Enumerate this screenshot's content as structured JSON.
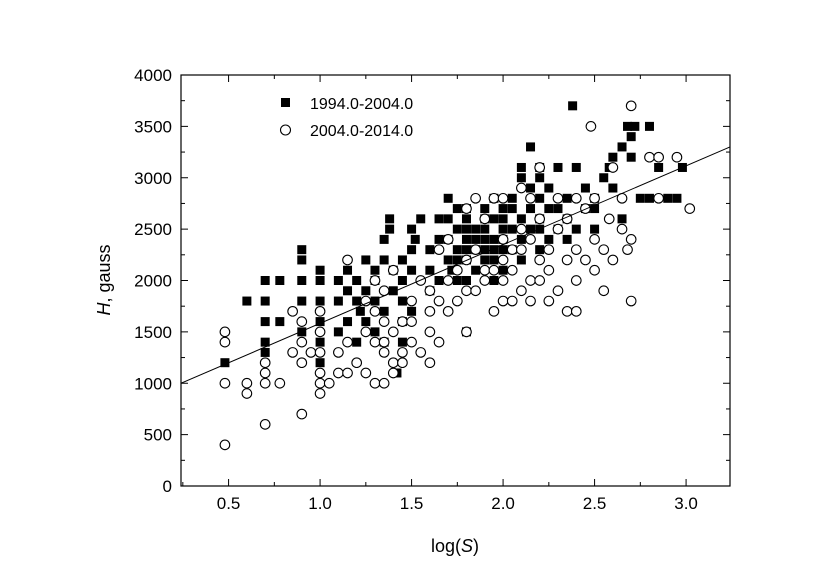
{
  "chart_data": {
    "type": "scatter",
    "xlabel": {
      "prefix": "log(",
      "var": "S",
      "suffix": ")"
    },
    "ylabel": {
      "var": "H",
      "suffix": ", gauss"
    },
    "xlim": [
      0.24,
      3.24
    ],
    "ylim": [
      0,
      4000
    ],
    "x_ticks": [
      "0.5",
      "1.0",
      "1.5",
      "2.0",
      "2.5",
      "3.0"
    ],
    "x_tick_values": [
      0.5,
      1.0,
      1.5,
      2.0,
      2.5,
      3.0
    ],
    "y_ticks": [
      "0",
      "500",
      "1000",
      "1500",
      "2000",
      "2500",
      "3000",
      "3500",
      "4000"
    ],
    "y_tick_values": [
      0,
      500,
      1000,
      1500,
      2000,
      2500,
      3000,
      3500,
      4000
    ],
    "grid": false,
    "legend_position": "top-left",
    "series": [
      {
        "name": "1994.0-2004.0",
        "marker": "filled-square",
        "color": "#000000",
        "points": [
          [
            0.48,
            1200
          ],
          [
            0.6,
            1800
          ],
          [
            0.7,
            1300
          ],
          [
            0.7,
            1400
          ],
          [
            0.7,
            1600
          ],
          [
            0.7,
            1800
          ],
          [
            0.7,
            2000
          ],
          [
            0.78,
            1600
          ],
          [
            0.78,
            2000
          ],
          [
            0.9,
            1500
          ],
          [
            0.9,
            1800
          ],
          [
            0.9,
            2000
          ],
          [
            0.9,
            2200
          ],
          [
            0.9,
            2300
          ],
          [
            1.0,
            1200
          ],
          [
            1.0,
            1400
          ],
          [
            1.0,
            1600
          ],
          [
            1.0,
            1800
          ],
          [
            1.0,
            2000
          ],
          [
            1.0,
            2100
          ],
          [
            1.1,
            1500
          ],
          [
            1.1,
            1800
          ],
          [
            1.1,
            2000
          ],
          [
            1.15,
            1600
          ],
          [
            1.15,
            1900
          ],
          [
            1.15,
            2100
          ],
          [
            1.2,
            1400
          ],
          [
            1.2,
            1800
          ],
          [
            1.2,
            2000
          ],
          [
            1.22,
            1700
          ],
          [
            1.25,
            1600
          ],
          [
            1.25,
            1900
          ],
          [
            1.25,
            2200
          ],
          [
            1.3,
            1500
          ],
          [
            1.3,
            1800
          ],
          [
            1.3,
            2000
          ],
          [
            1.3,
            2100
          ],
          [
            1.35,
            1400
          ],
          [
            1.35,
            1700
          ],
          [
            1.35,
            2200
          ],
          [
            1.35,
            2400
          ],
          [
            1.38,
            2500
          ],
          [
            1.38,
            2600
          ],
          [
            1.4,
            1900
          ],
          [
            1.4,
            2100
          ],
          [
            1.42,
            1100
          ],
          [
            1.45,
            1400
          ],
          [
            1.45,
            1600
          ],
          [
            1.45,
            1800
          ],
          [
            1.45,
            2000
          ],
          [
            1.45,
            2200
          ],
          [
            1.5,
            1700
          ],
          [
            1.5,
            2100
          ],
          [
            1.5,
            2300
          ],
          [
            1.5,
            2500
          ],
          [
            1.52,
            2400
          ],
          [
            1.55,
            2600
          ],
          [
            1.6,
            1900
          ],
          [
            1.6,
            2100
          ],
          [
            1.6,
            2300
          ],
          [
            1.65,
            2000
          ],
          [
            1.65,
            2400
          ],
          [
            1.65,
            2600
          ],
          [
            1.7,
            2200
          ],
          [
            1.7,
            2400
          ],
          [
            1.7,
            2600
          ],
          [
            1.7,
            2800
          ],
          [
            1.72,
            2100
          ],
          [
            1.75,
            2000
          ],
          [
            1.75,
            2200
          ],
          [
            1.75,
            2300
          ],
          [
            1.75,
            2500
          ],
          [
            1.75,
            2700
          ],
          [
            1.8,
            1500
          ],
          [
            1.8,
            2000
          ],
          [
            1.8,
            2200
          ],
          [
            1.8,
            2300
          ],
          [
            1.8,
            2400
          ],
          [
            1.8,
            2500
          ],
          [
            1.8,
            2600
          ],
          [
            1.8,
            2700
          ],
          [
            1.85,
            2100
          ],
          [
            1.85,
            2300
          ],
          [
            1.85,
            2400
          ],
          [
            1.85,
            2500
          ],
          [
            1.9,
            2200
          ],
          [
            1.9,
            2300
          ],
          [
            1.9,
            2400
          ],
          [
            1.9,
            2500
          ],
          [
            1.9,
            2600
          ],
          [
            1.9,
            2700
          ],
          [
            1.95,
            2000
          ],
          [
            1.95,
            2200
          ],
          [
            1.95,
            2300
          ],
          [
            1.95,
            2400
          ],
          [
            1.95,
            2600
          ],
          [
            1.95,
            2800
          ],
          [
            2.0,
            2100
          ],
          [
            2.0,
            2300
          ],
          [
            2.0,
            2400
          ],
          [
            2.0,
            2500
          ],
          [
            2.0,
            2600
          ],
          [
            2.0,
            2700
          ],
          [
            2.05,
            2300
          ],
          [
            2.05,
            2500
          ],
          [
            2.05,
            2700
          ],
          [
            2.05,
            2800
          ],
          [
            2.1,
            2200
          ],
          [
            2.1,
            2400
          ],
          [
            2.1,
            2600
          ],
          [
            2.1,
            3000
          ],
          [
            2.1,
            3100
          ],
          [
            2.15,
            2500
          ],
          [
            2.15,
            2700
          ],
          [
            2.15,
            2900
          ],
          [
            2.15,
            3300
          ],
          [
            2.2,
            2300
          ],
          [
            2.2,
            2500
          ],
          [
            2.2,
            2600
          ],
          [
            2.2,
            2800
          ],
          [
            2.2,
            3000
          ],
          [
            2.2,
            3100
          ],
          [
            2.25,
            2400
          ],
          [
            2.25,
            2700
          ],
          [
            2.25,
            2900
          ],
          [
            2.3,
            2500
          ],
          [
            2.3,
            2700
          ],
          [
            2.3,
            3100
          ],
          [
            2.35,
            2400
          ],
          [
            2.35,
            2600
          ],
          [
            2.35,
            2800
          ],
          [
            2.38,
            3700
          ],
          [
            2.4,
            2500
          ],
          [
            2.4,
            3100
          ],
          [
            2.45,
            2700
          ],
          [
            2.45,
            2900
          ],
          [
            2.5,
            2500
          ],
          [
            2.5,
            2700
          ],
          [
            2.5,
            2800
          ],
          [
            2.55,
            3000
          ],
          [
            2.58,
            3100
          ],
          [
            2.6,
            2900
          ],
          [
            2.6,
            3200
          ],
          [
            2.65,
            2600
          ],
          [
            2.65,
            3300
          ],
          [
            2.68,
            3500
          ],
          [
            2.7,
            3200
          ],
          [
            2.7,
            3400
          ],
          [
            2.72,
            3500
          ],
          [
            2.75,
            2800
          ],
          [
            2.8,
            3500
          ],
          [
            2.8,
            2800
          ],
          [
            2.85,
            3100
          ],
          [
            2.9,
            2800
          ],
          [
            2.95,
            2800
          ],
          [
            2.98,
            3100
          ]
        ]
      },
      {
        "name": "2004.0-2014.0",
        "marker": "open-circle",
        "color": "#000000",
        "points": [
          [
            0.48,
            400
          ],
          [
            0.48,
            1000
          ],
          [
            0.48,
            1400
          ],
          [
            0.48,
            1500
          ],
          [
            0.6,
            900
          ],
          [
            0.6,
            1000
          ],
          [
            0.7,
            600
          ],
          [
            0.7,
            1000
          ],
          [
            0.7,
            1100
          ],
          [
            0.7,
            1200
          ],
          [
            0.78,
            1000
          ],
          [
            0.85,
            1300
          ],
          [
            0.85,
            1700
          ],
          [
            0.9,
            700
          ],
          [
            0.9,
            1200
          ],
          [
            0.9,
            1400
          ],
          [
            0.9,
            1600
          ],
          [
            0.95,
            1300
          ],
          [
            1.0,
            900
          ],
          [
            1.0,
            1000
          ],
          [
            1.0,
            1100
          ],
          [
            1.0,
            1300
          ],
          [
            1.0,
            1500
          ],
          [
            1.0,
            1700
          ],
          [
            1.05,
            1000
          ],
          [
            1.1,
            1100
          ],
          [
            1.1,
            1300
          ],
          [
            1.15,
            1100
          ],
          [
            1.15,
            1400
          ],
          [
            1.15,
            2200
          ],
          [
            1.2,
            1200
          ],
          [
            1.25,
            1100
          ],
          [
            1.25,
            1500
          ],
          [
            1.25,
            1800
          ],
          [
            1.3,
            1000
          ],
          [
            1.3,
            1400
          ],
          [
            1.3,
            1700
          ],
          [
            1.3,
            2000
          ],
          [
            1.35,
            1000
          ],
          [
            1.35,
            1300
          ],
          [
            1.35,
            1400
          ],
          [
            1.35,
            1600
          ],
          [
            1.35,
            1900
          ],
          [
            1.4,
            1100
          ],
          [
            1.4,
            1200
          ],
          [
            1.4,
            1500
          ],
          [
            1.4,
            2100
          ],
          [
            1.45,
            1200
          ],
          [
            1.45,
            1300
          ],
          [
            1.45,
            1600
          ],
          [
            1.5,
            1400
          ],
          [
            1.5,
            1600
          ],
          [
            1.5,
            1800
          ],
          [
            1.55,
            1300
          ],
          [
            1.55,
            2000
          ],
          [
            1.6,
            1200
          ],
          [
            1.6,
            1500
          ],
          [
            1.6,
            1700
          ],
          [
            1.6,
            1900
          ],
          [
            1.65,
            1400
          ],
          [
            1.65,
            1800
          ],
          [
            1.65,
            2300
          ],
          [
            1.7,
            1700
          ],
          [
            1.7,
            2000
          ],
          [
            1.7,
            2400
          ],
          [
            1.75,
            1800
          ],
          [
            1.75,
            2100
          ],
          [
            1.8,
            1500
          ],
          [
            1.8,
            1900
          ],
          [
            1.8,
            2200
          ],
          [
            1.8,
            2700
          ],
          [
            1.85,
            1900
          ],
          [
            1.85,
            2300
          ],
          [
            1.85,
            2800
          ],
          [
            1.9,
            2000
          ],
          [
            1.9,
            2100
          ],
          [
            1.9,
            2600
          ],
          [
            1.95,
            1700
          ],
          [
            1.95,
            2100
          ],
          [
            1.95,
            2800
          ],
          [
            2.0,
            1800
          ],
          [
            2.0,
            2000
          ],
          [
            2.0,
            2200
          ],
          [
            2.0,
            2400
          ],
          [
            2.0,
            2800
          ],
          [
            2.05,
            1800
          ],
          [
            2.05,
            2100
          ],
          [
            2.05,
            2300
          ],
          [
            2.1,
            1900
          ],
          [
            2.1,
            2300
          ],
          [
            2.1,
            2500
          ],
          [
            2.1,
            2900
          ],
          [
            2.15,
            1800
          ],
          [
            2.15,
            2000
          ],
          [
            2.15,
            2400
          ],
          [
            2.15,
            2800
          ],
          [
            2.2,
            2000
          ],
          [
            2.2,
            2200
          ],
          [
            2.2,
            2600
          ],
          [
            2.2,
            3100
          ],
          [
            2.25,
            1800
          ],
          [
            2.25,
            2100
          ],
          [
            2.25,
            2300
          ],
          [
            2.3,
            1900
          ],
          [
            2.3,
            2500
          ],
          [
            2.3,
            2800
          ],
          [
            2.35,
            1700
          ],
          [
            2.35,
            2200
          ],
          [
            2.35,
            2600
          ],
          [
            2.4,
            1700
          ],
          [
            2.4,
            2000
          ],
          [
            2.4,
            2300
          ],
          [
            2.4,
            2800
          ],
          [
            2.45,
            2200
          ],
          [
            2.45,
            2700
          ],
          [
            2.48,
            3500
          ],
          [
            2.5,
            2100
          ],
          [
            2.5,
            2400
          ],
          [
            2.5,
            2800
          ],
          [
            2.55,
            1900
          ],
          [
            2.55,
            2300
          ],
          [
            2.58,
            2600
          ],
          [
            2.6,
            2200
          ],
          [
            2.6,
            3100
          ],
          [
            2.65,
            2500
          ],
          [
            2.65,
            2800
          ],
          [
            2.68,
            2300
          ],
          [
            2.7,
            2400
          ],
          [
            2.7,
            1800
          ],
          [
            2.7,
            3700
          ],
          [
            2.8,
            3200
          ],
          [
            2.85,
            2800
          ],
          [
            2.85,
            3200
          ],
          [
            2.95,
            3200
          ],
          [
            3.02,
            2700
          ]
        ]
      }
    ],
    "fit_line": {
      "x": [
        0.24,
        3.24
      ],
      "y": [
        1000,
        3300
      ]
    }
  }
}
